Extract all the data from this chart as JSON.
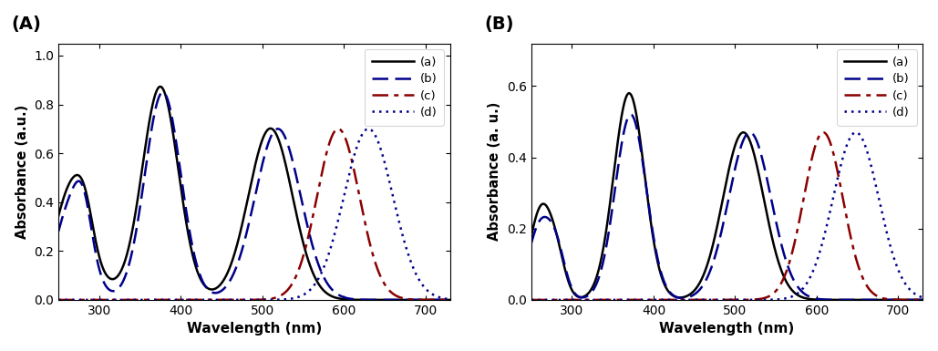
{
  "panel_A": {
    "label": "(A)",
    "ylabel": "Absorbance (a.u.)",
    "xlabel": "Wavelength (nm)",
    "xlim": [
      250,
      730
    ],
    "ylim": [
      0.0,
      1.05
    ],
    "yticks": [
      0.0,
      0.2,
      0.4,
      0.6,
      0.8,
      1.0
    ],
    "xticks": [
      300,
      400,
      500,
      600,
      700
    ],
    "legend": [
      "(a)",
      "(b)",
      "(c)",
      "(d)"
    ],
    "colors": [
      "#000000",
      "#00008B",
      "#8B0000",
      "#00008B"
    ],
    "linewidths": [
      1.8,
      1.8,
      1.8,
      1.8
    ]
  },
  "panel_B": {
    "label": "(B)",
    "ylabel": "Absorbance (a. u.)",
    "xlabel": "Wavelength (nm)",
    "xlim": [
      250,
      730
    ],
    "ylim": [
      0.0,
      0.72
    ],
    "yticks": [
      0.0,
      0.2,
      0.4,
      0.6
    ],
    "xticks": [
      300,
      400,
      500,
      600,
      700
    ],
    "legend": [
      "(a)",
      "(b)",
      "(c)",
      "(d)"
    ],
    "colors": [
      "#000000",
      "#00008B",
      "#8B0000",
      "#00008B"
    ],
    "linewidths": [
      1.8,
      1.8,
      1.8,
      1.8
    ]
  }
}
